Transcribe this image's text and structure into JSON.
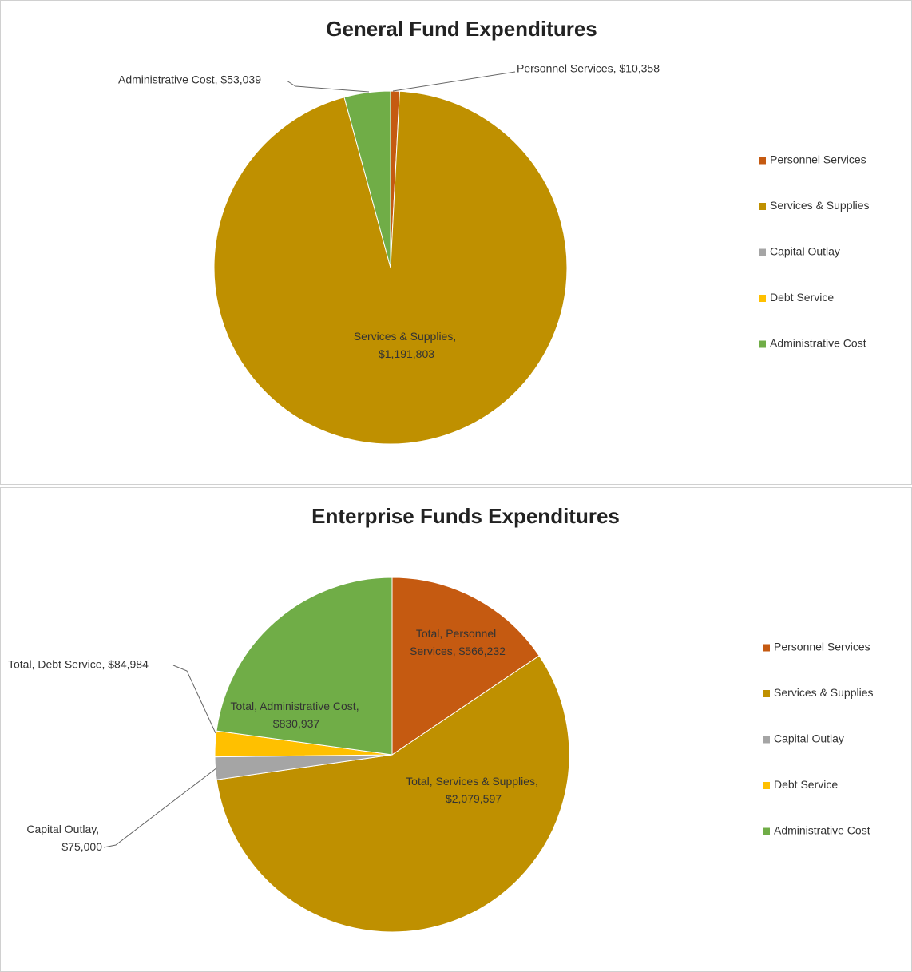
{
  "chart_data": [
    {
      "type": "pie",
      "title": "General Fund Expenditures",
      "categories": [
        "Personnel Services",
        "Services & Supplies",
        "Capital Outlay",
        "Debt Service",
        "Administrative Cost"
      ],
      "values": [
        10358,
        1191803,
        0,
        0,
        53039
      ],
      "value_labels": [
        "Personnel Services, $10,358",
        "Services & Supplies, $1,191,803",
        null,
        null,
        "Administrative Cost, $53,039"
      ],
      "colors": [
        "#c55a11",
        "#bf9000",
        "#a5a5a5",
        "#ffc000",
        "#70ad47"
      ],
      "legend": "right"
    },
    {
      "type": "pie",
      "title": "Enterprise Funds Expenditures",
      "categories": [
        "Personnel Services",
        "Services & Supplies",
        "Capital Outlay",
        "Debt Service",
        "Administrative Cost"
      ],
      "values": [
        566232,
        2079597,
        75000,
        84984,
        830937
      ],
      "value_labels": [
        "Total, Personnel Services, $566,232",
        "Total, Services & Supplies, $2,079,597",
        "Capital Outlay, $75,000",
        "Total, Debt Service, $84,984",
        "Total, Administrative Cost, $830,937"
      ],
      "colors": [
        "#c55a11",
        "#bf9000",
        "#a5a5a5",
        "#ffc000",
        "#70ad47"
      ],
      "legend": "right"
    }
  ]
}
